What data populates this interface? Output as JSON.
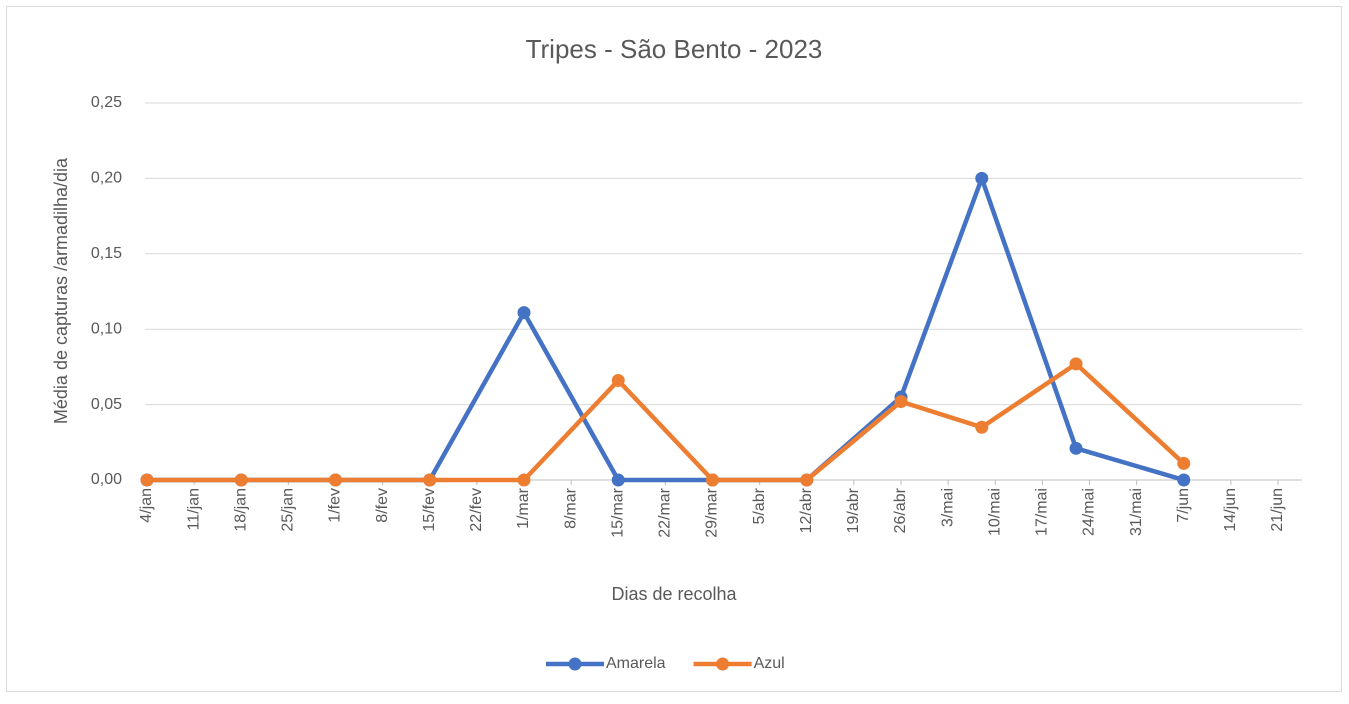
{
  "chart_data": {
    "type": "line",
    "title": "Tripes - São Bento - 2023",
    "x_label": "Dias de recolha",
    "y_label": "Média de capturas /armadilha/dia",
    "x": [
      "2023-01-04",
      "2023-01-18",
      "2023-02-01",
      "2023-02-15",
      "2023-03-01",
      "2023-03-15",
      "2023-03-29",
      "2023-04-12",
      "2023-04-26",
      "2023-05-08",
      "2023-05-22",
      "2023-06-07"
    ],
    "series": [
      {
        "name": "Amarela",
        "color": "#4472c4",
        "values": [
          0,
          0,
          0,
          0,
          0.111,
          0,
          0,
          0,
          0.055,
          0.2,
          0.021,
          0
        ]
      },
      {
        "name": "Azul",
        "color": "#ed7d31",
        "values": [
          0,
          0,
          0,
          0,
          0,
          0.066,
          0,
          0,
          0.052,
          0.035,
          0.077,
          0.011
        ]
      }
    ],
    "xlim": [
      "2023-01-04",
      "2023-06-21"
    ],
    "xticks": [
      {
        "value": "2023-01-04",
        "label": "4/jan"
      },
      {
        "value": "2023-01-11",
        "label": "11/jan"
      },
      {
        "value": "2023-01-18",
        "label": "18/jan"
      },
      {
        "value": "2023-01-25",
        "label": "25/jan"
      },
      {
        "value": "2023-02-01",
        "label": "1/fev"
      },
      {
        "value": "2023-02-08",
        "label": "8/fev"
      },
      {
        "value": "2023-02-15",
        "label": "15/fev"
      },
      {
        "value": "2023-02-22",
        "label": "22/fev"
      },
      {
        "value": "2023-03-01",
        "label": "1/mar"
      },
      {
        "value": "2023-03-08",
        "label": "8/mar"
      },
      {
        "value": "2023-03-15",
        "label": "15/mar"
      },
      {
        "value": "2023-03-22",
        "label": "22/mar"
      },
      {
        "value": "2023-03-29",
        "label": "29/mar"
      },
      {
        "value": "2023-04-05",
        "label": "5/abr"
      },
      {
        "value": "2023-04-12",
        "label": "12/abr"
      },
      {
        "value": "2023-04-19",
        "label": "19/abr"
      },
      {
        "value": "2023-04-26",
        "label": "26/abr"
      },
      {
        "value": "2023-05-03",
        "label": "3/mai"
      },
      {
        "value": "2023-05-10",
        "label": "10/mai"
      },
      {
        "value": "2023-05-17",
        "label": "17/mai"
      },
      {
        "value": "2023-05-24",
        "label": "24/mai"
      },
      {
        "value": "2023-05-31",
        "label": "31/mai"
      },
      {
        "value": "2023-06-07",
        "label": "7/jun"
      },
      {
        "value": "2023-06-14",
        "label": "14/jun"
      },
      {
        "value": "2023-06-21",
        "label": "21/jun"
      }
    ],
    "ylim": [
      0,
      0.25
    ],
    "yticks": [
      {
        "value": 0,
        "label": "0,00"
      },
      {
        "value": 0.05,
        "label": "0,05"
      },
      {
        "value": 0.1,
        "label": "0,10"
      },
      {
        "value": 0.15,
        "label": "0,15"
      },
      {
        "value": 0.2,
        "label": "0,20"
      },
      {
        "value": 0.25,
        "label": "0,25"
      }
    ],
    "grid": true,
    "legend": "bottom"
  }
}
